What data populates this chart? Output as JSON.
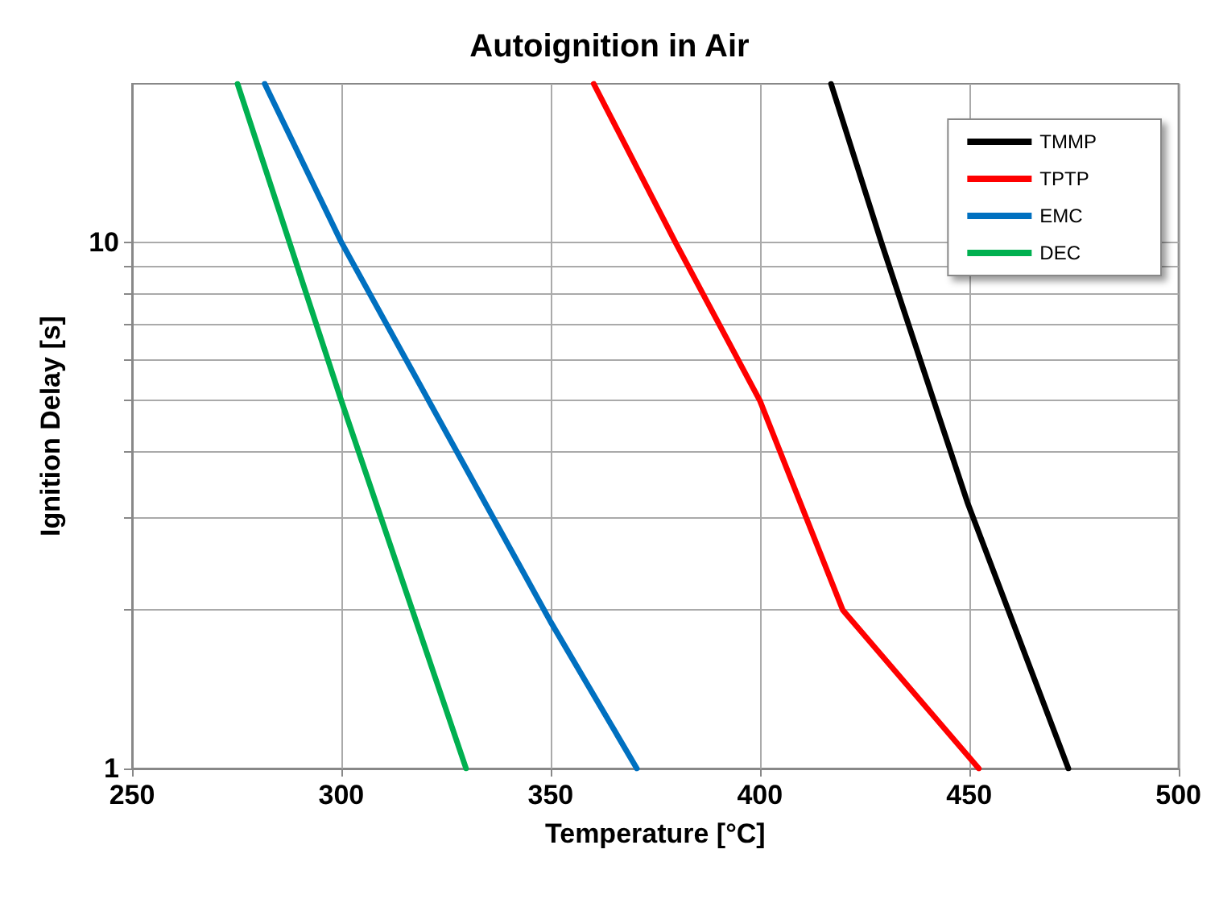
{
  "chart_data": {
    "type": "line",
    "title": "Autoignition in Air",
    "xlabel": "Temperature [°C]",
    "ylabel": "Ignition Delay [s]",
    "log": "y",
    "grid": true,
    "legend": "top right",
    "marker": "none",
    "line_style": "solid",
    "xlim": [
      250,
      500
    ],
    "xticks": [
      250,
      300,
      350,
      400,
      450,
      500
    ],
    "ylim": [
      1,
      20
    ],
    "yticks": [
      1,
      {
        "value": 2,
        "label": null
      },
      {
        "value": 3,
        "label": null
      },
      {
        "value": 4,
        "label": null
      },
      {
        "value": 5,
        "label": null
      },
      {
        "value": 6,
        "label": null
      },
      {
        "value": 7,
        "label": null
      },
      {
        "value": 8,
        "label": null
      },
      {
        "value": 9,
        "label": null
      },
      10
    ],
    "series": [
      {
        "name": "TMMP",
        "color": "#000000",
        "x": [
          417,
          429,
          449.6,
          473.7
        ],
        "values": [
          20,
          10,
          3.2,
          1
        ]
      },
      {
        "name": "TPTP",
        "color": "#ff0000",
        "x": [
          360.3,
          379.8,
          400,
          419.8,
          452.3
        ],
        "values": [
          20,
          10,
          5,
          2,
          1
        ]
      },
      {
        "name": "EMC",
        "color": "#0070c0",
        "x": [
          281.7,
          300,
          350,
          370.6
        ],
        "values": [
          20,
          10,
          1.9,
          1
        ]
      },
      {
        "name": "DEC",
        "color": "#00b050",
        "x": [
          275.2,
          300,
          329.8
        ],
        "values": [
          20,
          5,
          1
        ]
      }
    ]
  }
}
